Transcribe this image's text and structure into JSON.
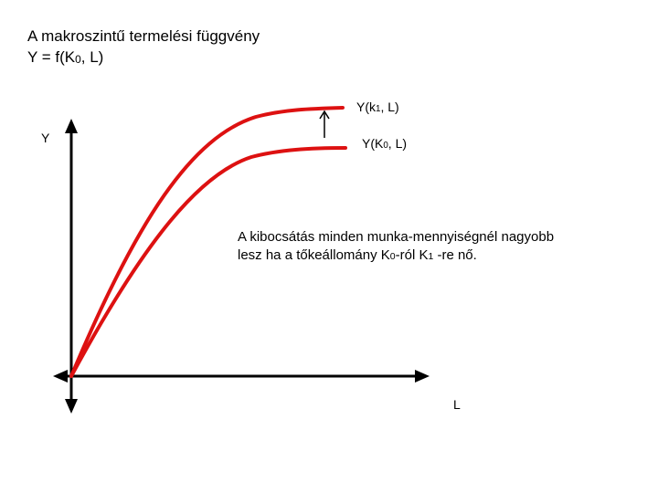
{
  "title": "A makroszintű termelési függvény",
  "formula": {
    "prefix": "Y = f(K",
    "sub": "0",
    "suffix": ", L)"
  },
  "axes": {
    "y_label": "Y",
    "x_label": "L"
  },
  "curves": {
    "upper": {
      "prefix": "Y(k",
      "sub": "1",
      "suffix": ", L)"
    },
    "lower": {
      "prefix": "Y(K",
      "sub": "0",
      "suffix": ", L)"
    }
  },
  "note": {
    "line1": "A kibocsátás minden munka-mennyiségnél nagyobb",
    "line2_a": "lesz ha a tőkeállomány K",
    "line2_sub1": "0",
    "line2_b": "-ról K",
    "line2_sub2": "1",
    "line2_c": " -re nő."
  },
  "colors": {
    "curve": "#dd1111",
    "axis": "#000000",
    "arrow": "#000000"
  },
  "icons": {
    "shift_arrow": "arrow-up-icon"
  }
}
